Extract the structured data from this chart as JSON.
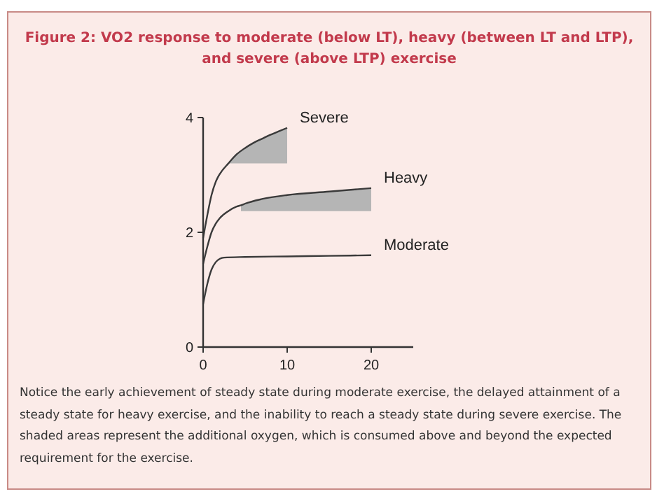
{
  "chart_data": {
    "type": "line",
    "title": "Figure 2: VO2 response to moderate (below LT), heavy (between LT and LTP), and severe (above LTP) exercise",
    "xlim": [
      0,
      25
    ],
    "xticks": [
      0,
      10,
      20
    ],
    "ylim": [
      0,
      4
    ],
    "yticks": [
      0,
      2,
      4
    ],
    "grid": false,
    "marker": "none",
    "line_style": "solid",
    "series": [
      {
        "name": "Severe",
        "color": "#3a3a3a",
        "x": [
          0,
          0.5,
          1,
          1.5,
          2,
          3,
          4,
          5,
          6,
          7,
          8,
          9,
          10
        ],
        "values": [
          1.9,
          2.3,
          2.65,
          2.88,
          3.02,
          3.2,
          3.36,
          3.47,
          3.56,
          3.63,
          3.7,
          3.76,
          3.82
        ],
        "lower": [
          null,
          null,
          null,
          null,
          null,
          3.2,
          3.2,
          3.2,
          3.2,
          3.2,
          3.2,
          3.2,
          3.2
        ],
        "upper": [
          null,
          null,
          null,
          null,
          null,
          3.2,
          3.36,
          3.47,
          3.56,
          3.63,
          3.7,
          3.76,
          3.82
        ]
      },
      {
        "name": "Heavy",
        "color": "#3a3a3a",
        "x": [
          0,
          0.5,
          1,
          1.5,
          2,
          3,
          4,
          4.5,
          5,
          7,
          10,
          15,
          20
        ],
        "values": [
          1.45,
          1.75,
          2.0,
          2.15,
          2.25,
          2.37,
          2.45,
          2.47,
          2.5,
          2.58,
          2.65,
          2.71,
          2.77
        ],
        "lower": [
          null,
          null,
          null,
          null,
          null,
          null,
          null,
          2.37,
          2.37,
          2.37,
          2.37,
          2.37,
          2.37
        ],
        "upper": [
          null,
          null,
          null,
          null,
          null,
          null,
          null,
          2.47,
          2.5,
          2.58,
          2.65,
          2.71,
          2.77
        ]
      },
      {
        "name": "Moderate",
        "color": "#3a3a3a",
        "x": [
          0,
          0.5,
          1,
          1.5,
          2,
          2.5,
          5,
          10,
          15,
          20
        ],
        "values": [
          0.75,
          1.1,
          1.35,
          1.48,
          1.54,
          1.56,
          1.57,
          1.58,
          1.59,
          1.6
        ]
      }
    ],
    "annotations": [
      "Notice the early achievement of steady state during moderate exercise, the delayed attainment of a steady state for heavy exercise, and the inability to reach a steady state during severe exercise. The shaded areas represent the additional oxygen, which is consumed above and beyond the expected requirement for the exercise."
    ]
  }
}
